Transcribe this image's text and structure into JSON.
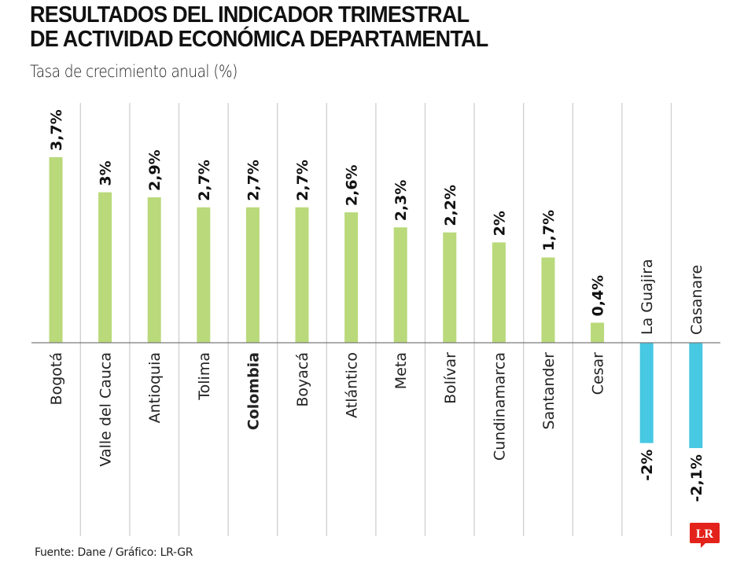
{
  "title_line1": "RESULTADOS DEL INDICADOR TRIMESTRAL",
  "title_line2": "DE ACTIVIDAD ECONÓMICA DEPARTAMENTAL",
  "subtitle": "Tasa de crecimiento anual (%)",
  "source": "Fuente: Dane / Gráfico: LR-GR",
  "logo_text": "LR",
  "colors": {
    "positive": "#b9d97a",
    "negative": "#47c8e3",
    "gridline": "#cfcfcf",
    "baseline": "#7a7a7a",
    "logo": "#e3231b"
  },
  "chart_data": {
    "type": "bar",
    "title": "RESULTADOS DEL INDICADOR TRIMESTRAL DE ACTIVIDAD ECONÓMICA DEPARTAMENTAL",
    "subtitle": "Tasa de crecimiento anual (%)",
    "xlabel": "",
    "ylabel": "Tasa de crecimiento anual (%)",
    "ylim": [
      -2.1,
      3.7
    ],
    "grid": "vertical-separators",
    "categories": [
      "Bogotá",
      "Valle del Cauca",
      "Antioquia",
      "Tolima",
      "Colombia",
      "Boyacá",
      "Atlántico",
      "Meta",
      "Bolívar",
      "Cundinamarca",
      "Santander",
      "Cesar",
      "La Guajira",
      "Casanare"
    ],
    "values": [
      3.7,
      3.0,
      2.9,
      2.7,
      2.7,
      2.7,
      2.6,
      2.3,
      2.2,
      2.0,
      1.7,
      0.4,
      -2.0,
      -2.1
    ],
    "labels": [
      "3,7%",
      "3%",
      "2,9%",
      "2,7%",
      "2,7%",
      "2,7%",
      "2,6%",
      "2,3%",
      "2,2%",
      "2%",
      "1,7%",
      "0,4%",
      "-2%",
      "-2,1%"
    ],
    "highlight": [
      "Colombia"
    ]
  }
}
